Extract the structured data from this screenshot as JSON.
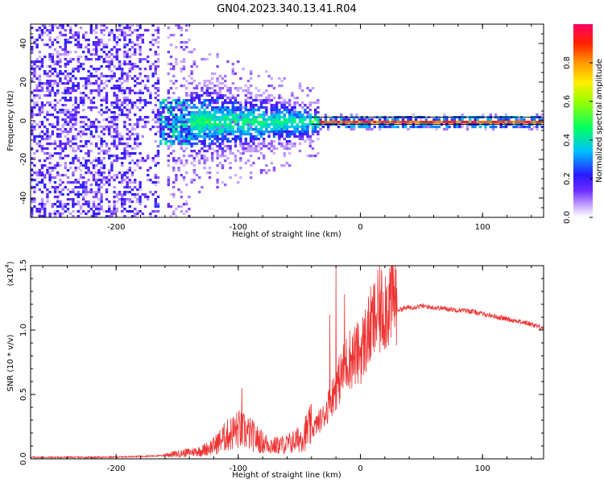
{
  "figure": {
    "title": "GN04.2023.340.13.41.R04"
  },
  "chart_data": [
    {
      "type": "heatmap",
      "xlabel": "Height of straight line (km)",
      "ylabel": "Frequency (Hz)",
      "xlim": [
        -270,
        150
      ],
      "ylim": [
        -50,
        50
      ],
      "xticks": [
        -200,
        -100,
        0,
        100
      ],
      "yticks": [
        -40,
        -20,
        0,
        20,
        40
      ],
      "colorbar": {
        "label": "Normalized spectral amplitude",
        "range": [
          0,
          1
        ],
        "ticks": [
          "0.0",
          "0.2",
          "0.4",
          "0.6",
          "0.8"
        ],
        "tick_values": [
          0,
          0.2,
          0.4,
          0.6,
          0.8
        ],
        "stops": [
          "#ffffff",
          "#8a4bff",
          "#3300ff",
          "#00d4ff",
          "#00ff00",
          "#ffff00",
          "#ff8800",
          "#ff0000",
          "#ff0077"
        ]
      },
      "regions": [
        {
          "x": [
            -270,
            -165
          ],
          "freq_spread": 50,
          "level": 0.3,
          "density": "scattered"
        },
        {
          "x": [
            -165,
            -35
          ],
          "freq_spread": 15,
          "level": 0.55,
          "density": "dense cloud"
        },
        {
          "x": [
            -35,
            150
          ],
          "freq_spread": 1.5,
          "level": 0.85,
          "density": "narrow band"
        }
      ]
    },
    {
      "type": "line",
      "xlabel": "Height of straight line (km)",
      "ylabel": "SNR (10 * v/v)",
      "y_multiplier": "(x10",
      "y_multiplier_exp": "4",
      "y_multiplier_close": ")",
      "xlim": [
        -270,
        150
      ],
      "ylim": [
        0,
        1.5
      ],
      "xticks": [
        -200,
        -100,
        0,
        100
      ],
      "yticks": [
        0.0,
        0.5,
        1.0,
        1.5
      ],
      "ytick_labels": [
        "0.0",
        "0.5",
        "1.0",
        "1.5"
      ],
      "color": "#ee3333",
      "series": [
        {
          "x": [
            -270,
            -250,
            -230,
            -210,
            -190,
            -170,
            -160,
            -150,
            -140,
            -130,
            -120,
            -110,
            -100,
            -90,
            -80,
            -70,
            -60,
            -50,
            -40,
            -30,
            -25,
            -20,
            -15,
            -10,
            -5,
            0,
            5,
            10,
            15,
            20,
            25,
            30,
            40,
            50,
            60,
            70,
            80,
            90,
            100,
            110,
            120,
            130,
            140,
            150
          ],
          "values": [
            0.01,
            0.01,
            0.01,
            0.01,
            0.015,
            0.02,
            0.025,
            0.03,
            0.04,
            0.05,
            0.08,
            0.14,
            0.18,
            0.15,
            0.1,
            0.08,
            0.09,
            0.12,
            0.2,
            0.3,
            0.4,
            0.5,
            0.6,
            0.7,
            0.72,
            0.75,
            0.85,
            0.95,
            1.02,
            1.08,
            1.12,
            1.15,
            1.17,
            1.18,
            1.17,
            1.16,
            1.15,
            1.14,
            1.12,
            1.1,
            1.08,
            1.06,
            1.04,
            1.01
          ]
        }
      ],
      "spikes": [
        {
          "x": -97,
          "y": 0.55
        },
        {
          "x": -20,
          "y": 1.5
        },
        {
          "x": -13,
          "y": 1.28
        },
        {
          "x": -25,
          "y": 1.12
        }
      ]
    }
  ]
}
